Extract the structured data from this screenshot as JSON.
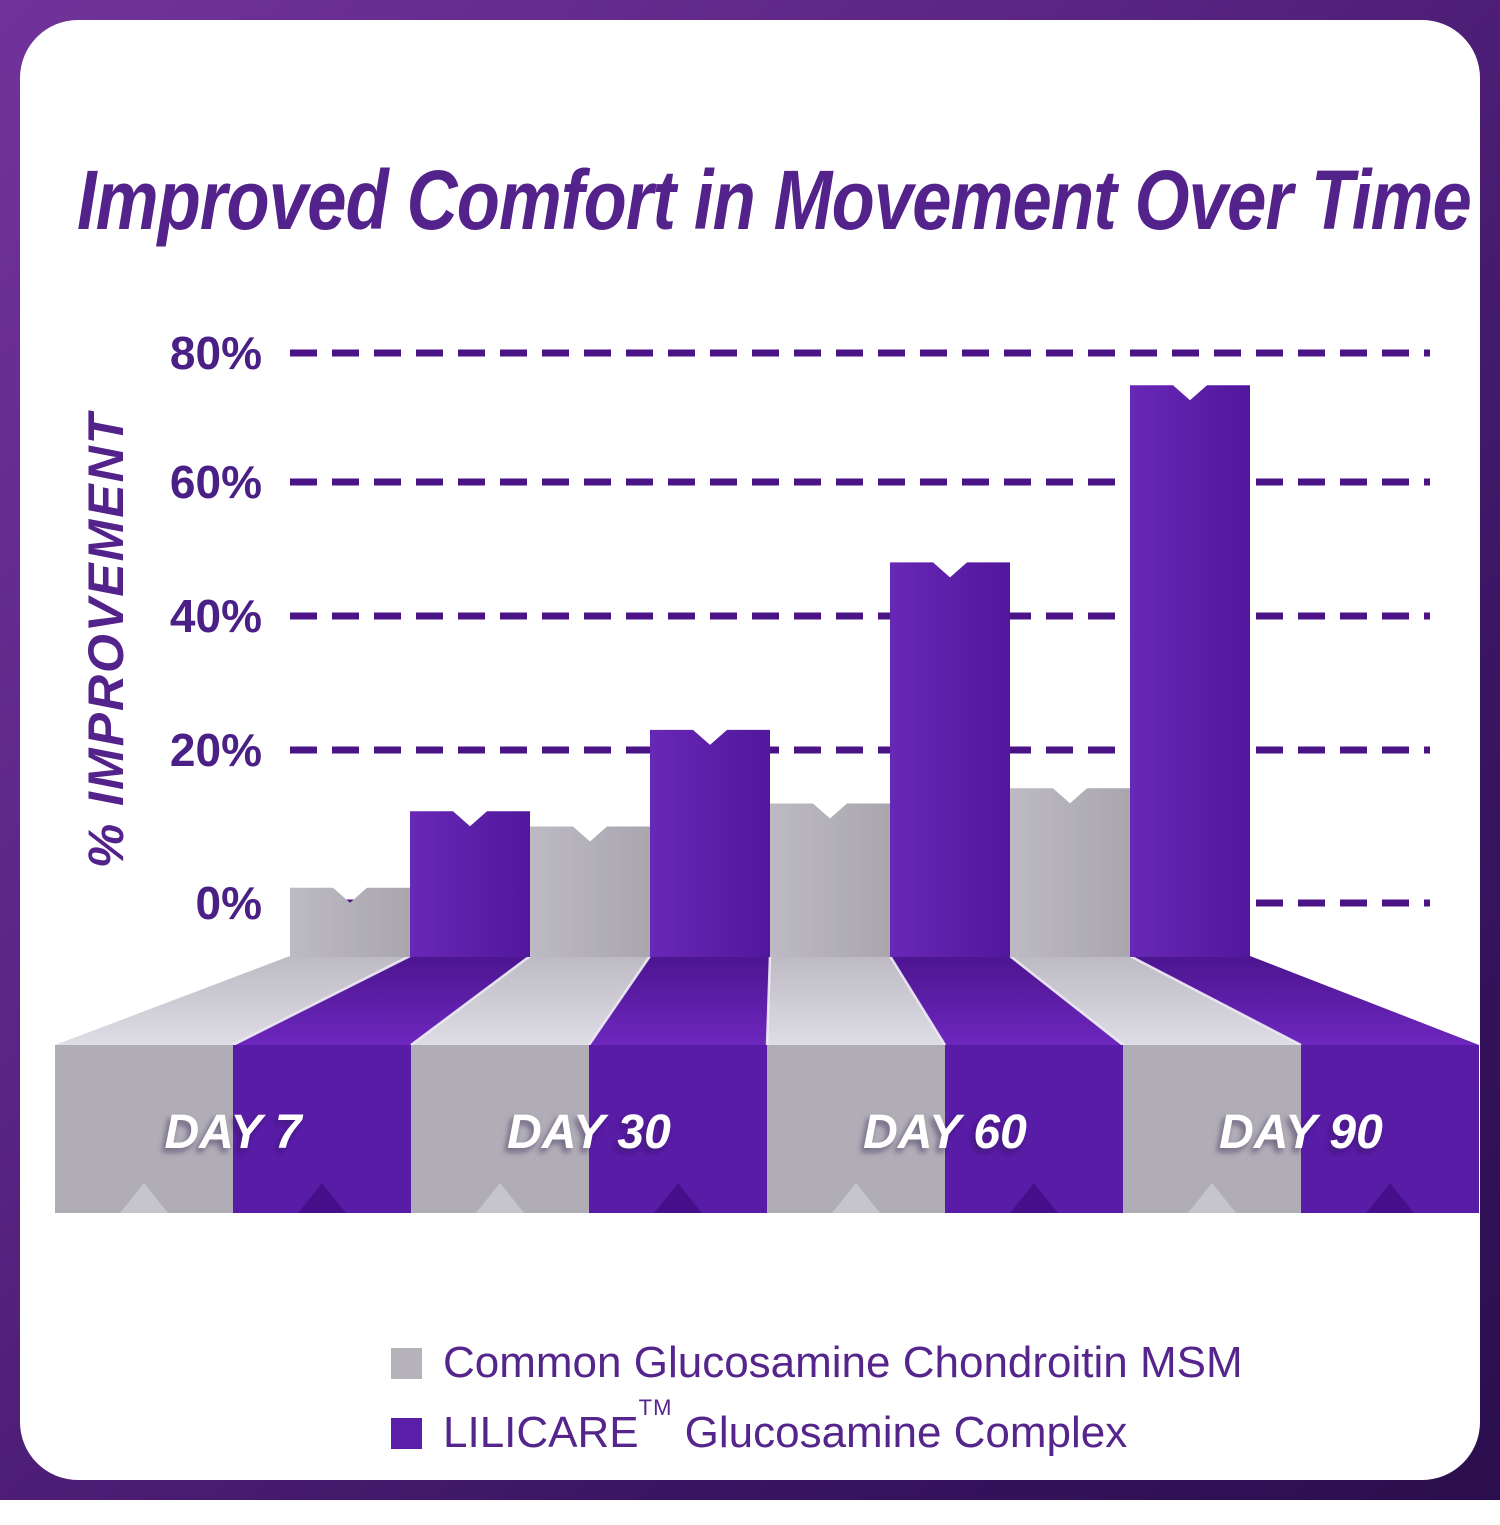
{
  "title": "Improved Comfort in Movement Over Time",
  "y_axis": {
    "label": "% IMPROVEMENT",
    "ticks": [
      {
        "label": "80%",
        "value": 80
      },
      {
        "label": "60%",
        "value": 60
      },
      {
        "label": "40%",
        "value": 40
      },
      {
        "label": "20%",
        "value": 20
      },
      {
        "label": "0%",
        "value": 0
      }
    ]
  },
  "legend": [
    {
      "label": "Common Glucosamine Chondroitin MSM",
      "color": "#B5B2BA"
    },
    {
      "brand": "LILICARE",
      "tm": "TM",
      "rest": " Glucosamine Complex",
      "color": "#5A1EA8"
    }
  ],
  "chart_data": {
    "type": "bar",
    "style": "pseudo-3d ribbon bars with notched tops",
    "title": "Improved Comfort in Movement Over Time",
    "ylabel": "% IMPROVEMENT",
    "categories": [
      "DAY 7",
      "DAY 30",
      "DAY 60",
      "DAY 90"
    ],
    "series": [
      {
        "name": "Common Glucosamine Chondroitin MSM",
        "values": [
          2,
          10,
          13,
          15
        ]
      },
      {
        "name": "LILICARE Glucosamine Complex",
        "values": [
          12,
          23,
          48,
          75
        ]
      }
    ],
    "yticks": [
      0,
      20,
      40,
      60,
      80
    ],
    "ylim": [
      0,
      80
    ],
    "grid": "dashed horizontal lines",
    "legend_position": "bottom"
  },
  "palette": {
    "bg_top_left": "#71339B",
    "bg_bottom_right": "#2B0E4D",
    "card": "#FFFFFF",
    "title_text": "#54228B",
    "tick_text": "#4A1F86",
    "grid_line": "#4A1386",
    "day_label_text": "#FFFFFF",
    "legend_text": "#55258C",
    "gray_face": "#B0ADB6",
    "gray_column_light": "#BDBAC3",
    "gray_column_dark": "#A9A6AF",
    "gray_ribbon_back": "#BDBAC4",
    "gray_ribbon_front": "#E0DEE6",
    "gray_notch": "#C7C5CC",
    "purple_face": "#591CA7",
    "purple_column_light": "#6828B6",
    "purple_column_dark": "#51179C",
    "purple_ribbon_back": "#4C1590",
    "purple_ribbon_front": "#6F28C0",
    "purple_notch": "#450F8A",
    "edge_highlight": "#EFEDF5"
  }
}
